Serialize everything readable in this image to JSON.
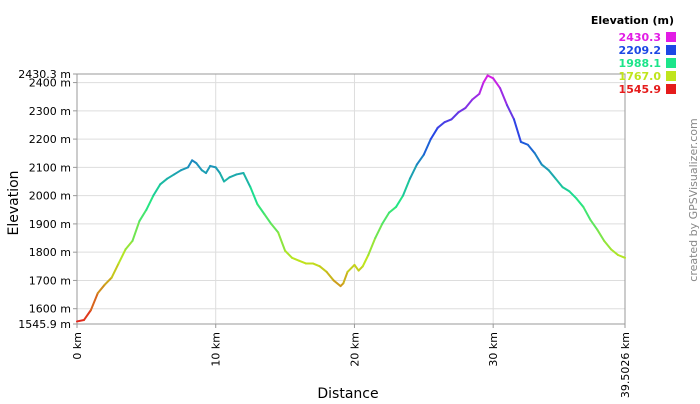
{
  "chart_data": {
    "type": "line",
    "title": "",
    "xlabel": "Distance",
    "ylabel": "Elevation",
    "xlim": [
      0,
      39.5026
    ],
    "ylim": [
      1545.9,
      2430.3
    ],
    "grid": true,
    "x_ticks": [
      {
        "value": 0,
        "label": "0 km"
      },
      {
        "value": 10,
        "label": "10 km"
      },
      {
        "value": 20,
        "label": "20 km"
      },
      {
        "value": 30,
        "label": "30 km"
      },
      {
        "value": 39.5026,
        "label": "39.5026 km"
      }
    ],
    "y_ticks": [
      {
        "value": 1545.9,
        "label": "1545.9 m"
      },
      {
        "value": 1600,
        "label": "1600 m"
      },
      {
        "value": 1700,
        "label": "1700 m"
      },
      {
        "value": 1800,
        "label": "1800 m"
      },
      {
        "value": 1900,
        "label": "1900 m"
      },
      {
        "value": 2000,
        "label": "2000 m"
      },
      {
        "value": 2100,
        "label": "2100 m"
      },
      {
        "value": 2200,
        "label": "2200 m"
      },
      {
        "value": 2300,
        "label": "2300 m"
      },
      {
        "value": 2400,
        "label": "2400 m"
      },
      {
        "value": 2430.3,
        "label": "2430.3 m"
      }
    ],
    "color_scale": {
      "title": "Elevation (m)",
      "entries": [
        {
          "label": "2430.3",
          "value": 2430.3,
          "color": "#e21ce5"
        },
        {
          "label": "2209.2",
          "value": 2209.2,
          "color": "#1c48e5"
        },
        {
          "label": "1988.1",
          "value": 1988.1,
          "color": "#1ce58a"
        },
        {
          "label": "1767.0",
          "value": 1767.0,
          "color": "#c0e51c"
        },
        {
          "label": "1545.9",
          "value": 1545.9,
          "color": "#e51c1c"
        }
      ]
    },
    "series": [
      {
        "x": [
          0,
          0.5,
          1,
          1.5,
          2,
          2.5,
          3,
          3.5,
          4,
          4.5,
          5,
          5.5,
          6,
          6.5,
          7,
          7.5,
          8,
          8.3,
          8.6,
          9,
          9.3,
          9.6,
          10,
          10.3,
          10.6,
          11,
          11.5,
          12,
          12.5,
          13,
          13.5,
          14,
          14.5,
          15,
          15.5,
          16,
          16.5,
          17,
          17.5,
          18,
          18.5,
          19,
          19.2,
          19.5,
          20,
          20.3,
          20.6,
          21,
          21.5,
          22,
          22.5,
          23,
          23.5,
          24,
          24.5,
          25,
          25.5,
          26,
          26.5,
          27,
          27.5,
          28,
          28.5,
          29,
          29.3,
          29.6,
          30,
          30.5,
          31,
          31.5,
          32,
          32.5,
          33,
          33.5,
          34,
          34.5,
          35,
          35.5,
          36,
          36.5,
          37,
          37.5,
          38,
          38.5,
          39,
          39.5026
        ],
        "y": [
          1555,
          1560,
          1595,
          1655,
          1685,
          1710,
          1760,
          1810,
          1840,
          1910,
          1950,
          2000,
          2040,
          2060,
          2075,
          2090,
          2100,
          2125,
          2115,
          2090,
          2080,
          2105,
          2100,
          2080,
          2050,
          2065,
          2075,
          2080,
          2030,
          1970,
          1935,
          1900,
          1870,
          1805,
          1780,
          1770,
          1760,
          1760,
          1750,
          1730,
          1700,
          1680,
          1690,
          1730,
          1755,
          1735,
          1750,
          1790,
          1850,
          1900,
          1940,
          1960,
          2000,
          2060,
          2110,
          2145,
          2200,
          2240,
          2260,
          2270,
          2295,
          2310,
          2340,
          2360,
          2400,
          2425,
          2415,
          2380,
          2320,
          2270,
          2190,
          2180,
          2150,
          2110,
          2090,
          2060,
          2030,
          2015,
          1990,
          1960,
          1915,
          1880,
          1840,
          1810,
          1790,
          1780
        ]
      }
    ],
    "credit": "created by GPSVisualizer.com"
  }
}
